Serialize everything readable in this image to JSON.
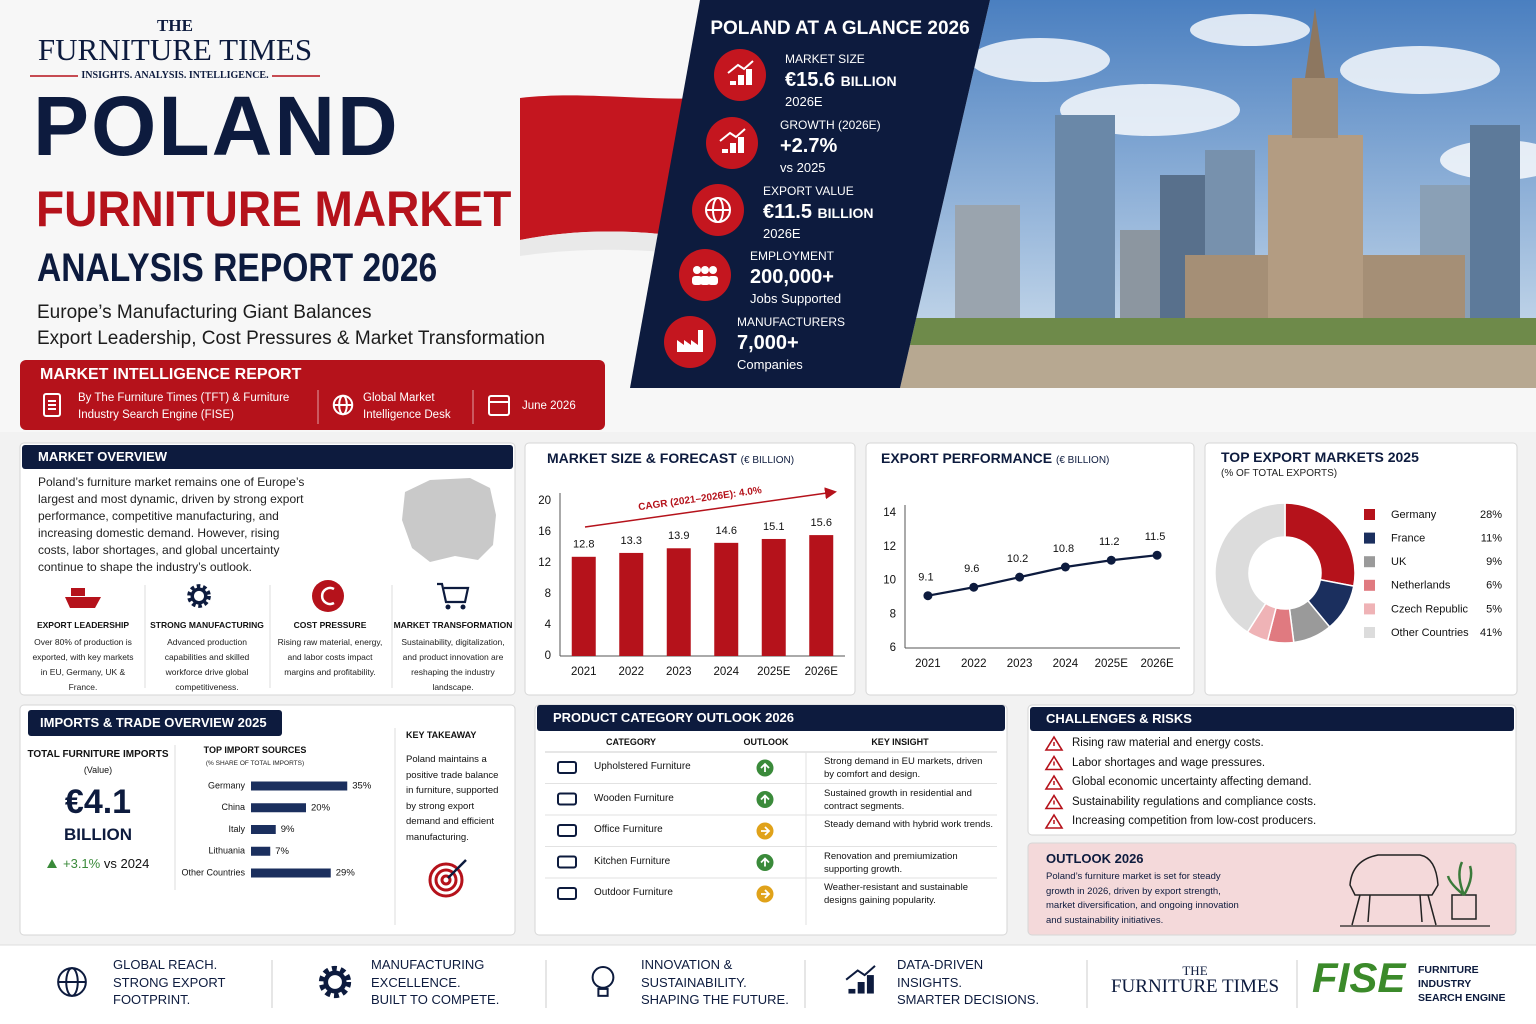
{
  "header": {
    "brand_top": "THE",
    "brand": "FURNITURE TIMES",
    "tagline": "INSIGHTS. ANALYSIS. INTELLIGENCE."
  },
  "title": {
    "line1": "POLAND",
    "line2": "FURNITURE MARKET",
    "line3": "ANALYSIS REPORT 2026"
  },
  "subtitle": [
    "Europe’s Manufacturing Giant Balances",
    "Export Leadership, Cost Pressures & Market Transformation"
  ],
  "report": {
    "title": "MARKET INTELLIGENCE REPORT",
    "items": [
      "By The Furniture Times (TFT) & Furniture Industry Search Engine (FISE)",
      "Global Market Intelligence Desk",
      "June 2026"
    ]
  },
  "glance": {
    "title": "POLAND AT A GLANCE 2026",
    "stats": [
      {
        "label": "MARKET SIZE",
        "value": "€15.6",
        "unit": "BILLION",
        "note": "2026E"
      },
      {
        "label": "GROWTH (2026E)",
        "value": "+2.7%",
        "note": "vs 2025"
      },
      {
        "label": "EXPORT VALUE",
        "value": "€11.5",
        "unit": "BILLION",
        "note": "2026E"
      },
      {
        "label": "EMPLOYMENT",
        "value": "200,000+",
        "note": "Jobs Supported"
      },
      {
        "label": "MANUFACTURERS",
        "value": "7,000+",
        "note": "Companies"
      }
    ]
  },
  "overview": {
    "title": "MARKET OVERVIEW",
    "text": "Poland’s furniture market remains one of Europe’s largest and most dynamic, driven by strong export performance, competitive manufacturing, and increasing domestic demand. However, rising costs, labor shortages, and global uncertainty continue to shape the industry’s outlook.",
    "pillars": [
      {
        "title": "EXPORT LEADERSHIP",
        "text": "Over 80% of production is exported, with key markets in EU, Germany, UK & France."
      },
      {
        "title": "STRONG MANUFACTURING",
        "text": "Advanced production capabilities and skilled workforce drive global competitiveness."
      },
      {
        "title": "COST PRESSURE",
        "text": "Rising raw material, energy, and labor costs impact margins and profitability."
      },
      {
        "title": "MARKET TRANSFORMATION",
        "text": "Sustainability, digitalization, and product innovation are reshaping the industry landscape."
      }
    ]
  },
  "chart_data": [
    {
      "type": "bar",
      "title": "MARKET SIZE & FORECAST",
      "unit": "(€ BILLION)",
      "annotation": "CAGR (2021–2026E): 4.0%",
      "categories": [
        "2021",
        "2022",
        "2023",
        "2024",
        "2025E",
        "2026E"
      ],
      "values": [
        12.8,
        13.3,
        13.9,
        14.6,
        15.1,
        15.6
      ],
      "color": "#b5121b",
      "ylim": [
        0,
        20
      ],
      "yticks": [
        0,
        4,
        8,
        12,
        16,
        20
      ]
    },
    {
      "type": "line",
      "title": "EXPORT PERFORMANCE",
      "unit": "(€ BILLION)",
      "categories": [
        "2021",
        "2022",
        "2023",
        "2024",
        "2025E",
        "2026E"
      ],
      "values": [
        9.1,
        9.6,
        10.2,
        10.8,
        11.2,
        11.5
      ],
      "color": "#0d1b3e",
      "ylim": [
        6,
        14
      ],
      "yticks": [
        6,
        8,
        10,
        12,
        14
      ]
    },
    {
      "type": "donut",
      "title": "TOP EXPORT MARKETS 2025",
      "subtitle": "(% OF TOTAL EXPORTS)",
      "categories": [
        "Germany",
        "France",
        "UK",
        "Netherlands",
        "Czech Republic",
        "Other Countries"
      ],
      "values": [
        28,
        11,
        9,
        6,
        5,
        41
      ],
      "value_labels": [
        "28%",
        "11%",
        "9%",
        "6%",
        "5%",
        "41%"
      ],
      "colors": [
        "#b5121b",
        "#1b2f5e",
        "#9a9a9a",
        "#e07a80",
        "#efb3b6",
        "#dcdcdc"
      ]
    },
    {
      "type": "barh",
      "title": "TOP IMPORT SOURCES",
      "subtitle": "(% SHARE OF TOTAL IMPORTS)",
      "categories": [
        "Germany",
        "China",
        "Italy",
        "Lithuania",
        "Other Countries"
      ],
      "values": [
        35,
        20,
        9,
        7,
        29
      ],
      "value_labels": [
        "35%",
        "20%",
        "9%",
        "7%",
        "29%"
      ],
      "color": "#1b2f5e"
    }
  ],
  "imports": {
    "title": "IMPORTS & TRADE OVERVIEW 2025",
    "total_label": "TOTAL FURNITURE IMPORTS",
    "total_sub": "(Value)",
    "total_value": "€4.1",
    "total_unit": "BILLION",
    "change": "+3.1%",
    "change_note": "vs 2024",
    "takeaway_title": "KEY TAKEAWAY",
    "takeaway": "Poland maintains a positive trade balance in furniture, supported by strong export demand and efficient manufacturing."
  },
  "products": {
    "title": "PRODUCT CATEGORY OUTLOOK 2026",
    "headers": [
      "CATEGORY",
      "OUTLOOK",
      "KEY INSIGHT"
    ],
    "rows": [
      {
        "category": "Upholstered Furniture",
        "outlook_color": "#3a8a3a",
        "outlook_arrow": "up",
        "insight": "Strong demand in EU markets, driven by comfort and design."
      },
      {
        "category": "Wooden Furniture",
        "outlook_color": "#3a8a3a",
        "outlook_arrow": "up",
        "insight": "Sustained growth in residential and contract segments."
      },
      {
        "category": "Office Furniture",
        "outlook_color": "#e0a21a",
        "outlook_arrow": "right",
        "insight": "Steady demand with hybrid work trends."
      },
      {
        "category": "Kitchen Furniture",
        "outlook_color": "#3a8a3a",
        "outlook_arrow": "up",
        "insight": "Renovation and premiumization supporting growth."
      },
      {
        "category": "Outdoor Furniture",
        "outlook_color": "#e0a21a",
        "outlook_arrow": "right",
        "insight": "Weather-resistant and sustainable designs gaining popularity."
      }
    ]
  },
  "challenges": {
    "title": "CHALLENGES & RISKS",
    "items": [
      "Rising raw material and energy costs.",
      "Labor shortages and wage pressures.",
      "Global economic uncertainty affecting demand.",
      "Sustainability regulations and compliance costs.",
      "Increasing competition from low-cost producers."
    ]
  },
  "outlook": {
    "title": "OUTLOOK 2026",
    "text": "Poland’s furniture market is set for steady growth in 2026, driven by export strength, market diversification, and ongoing innovation and sustainability initiatives."
  },
  "footer": {
    "items": [
      [
        "GLOBAL REACH.",
        "STRONG EXPORT",
        "FOOTPRINT."
      ],
      [
        "MANUFACTURING",
        "EXCELLENCE.",
        "BUILT TO COMPETE."
      ],
      [
        "INNOVATION &",
        "SUSTAINABILITY.",
        "SHAPING THE FUTURE."
      ],
      [
        "DATA-DRIVEN",
        "INSIGHTS.",
        "SMARTER DECISIONS."
      ]
    ],
    "brand_top": "THE",
    "brand": "FURNITURE TIMES",
    "fise": "FISE",
    "fise_name": "FURNITURE INDUSTRY SEARCH ENGINE"
  }
}
